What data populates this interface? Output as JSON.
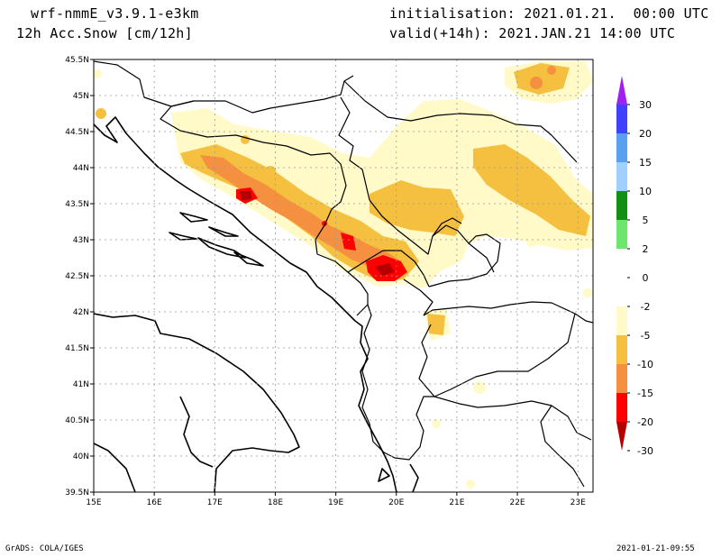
{
  "header": {
    "model": "wrf-nmmE_v3.9.1-e3km",
    "field": "12h Acc.Snow [cm/12h]",
    "init": "initialisation: 2021.01.21.  00:00 UTC",
    "valid": "valid(+14h): 2021.JAN.21 14:00 UTC"
  },
  "footer": {
    "credit": "GrADS: COLA/IGES",
    "timestamp": "2021-01-21-09:55"
  },
  "axes": {
    "lon_labels": [
      "15E",
      "16E",
      "17E",
      "18E",
      "19E",
      "20E",
      "21E",
      "22E",
      "23E"
    ],
    "lat_labels": [
      "39.5N",
      "40N",
      "40.5N",
      "41N",
      "41.5N",
      "42N",
      "42.5N",
      "43N",
      "43.5N",
      "44N",
      "44.5N",
      "45N",
      "45.5N"
    ]
  },
  "colorbar": {
    "labels": [
      "30",
      "20",
      "15",
      "10",
      "5",
      "2",
      "0",
      "-2",
      "-5",
      "-10",
      "-15",
      "-20",
      "-30"
    ],
    "colors": [
      "#a020f0",
      "#4040ff",
      "#5aa0f0",
      "#a0d0ff",
      "#129012",
      "#6ee66e",
      "#ffffff",
      "#ffffff",
      "#fffac8",
      "#f5c040",
      "#f59040",
      "#ff0000",
      "#b40000"
    ]
  }
}
